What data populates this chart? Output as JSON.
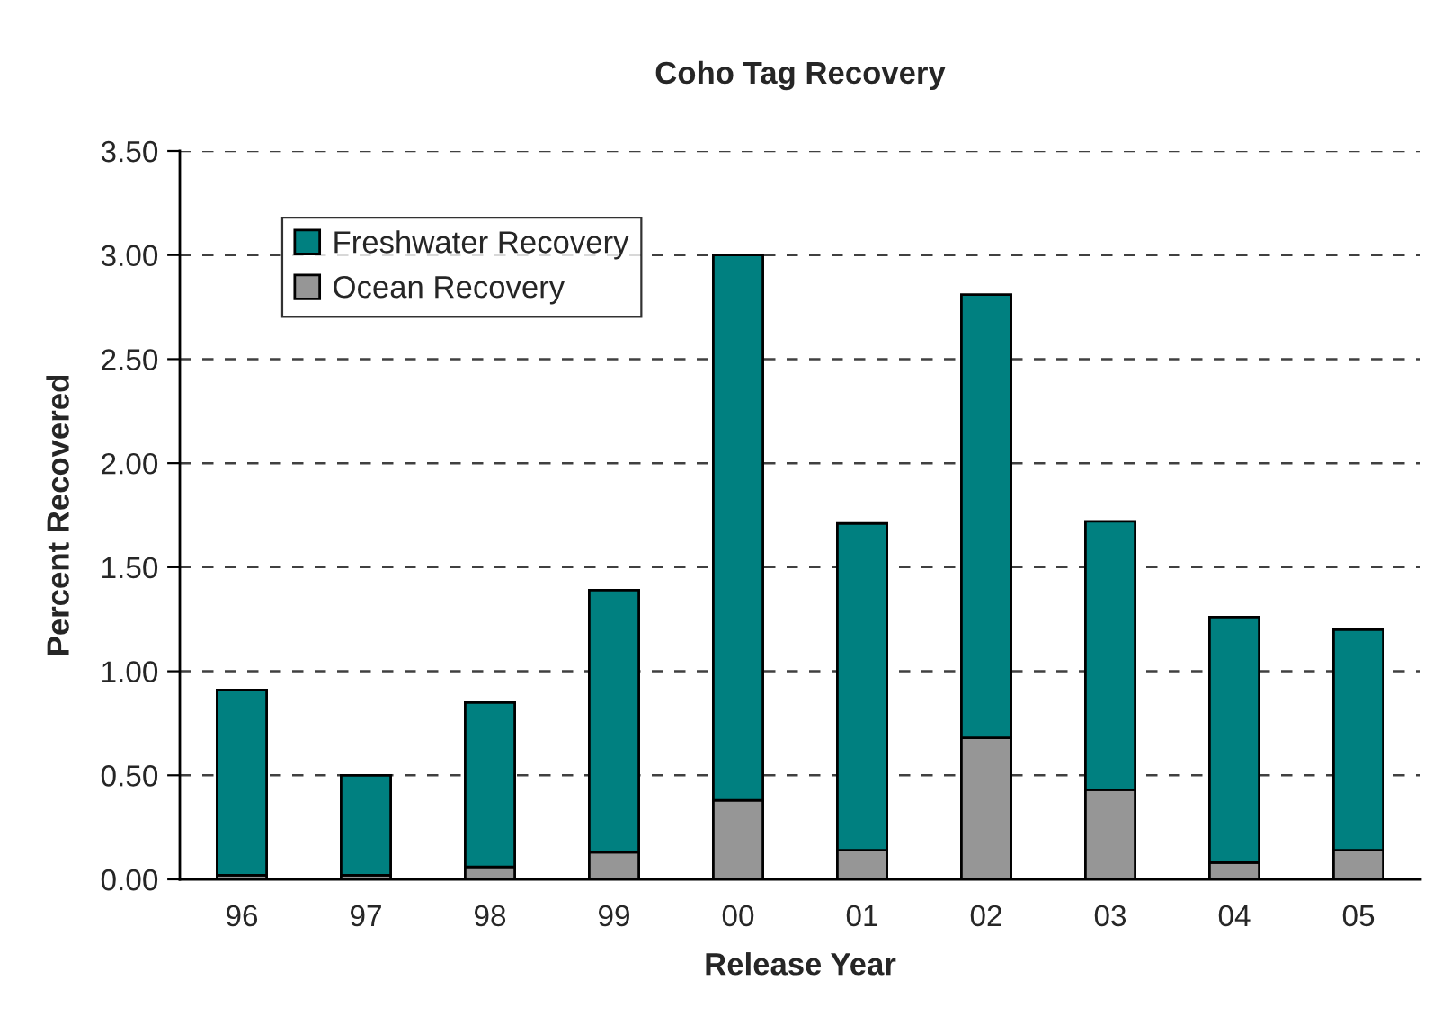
{
  "chart_data": {
    "type": "bar",
    "title": "Coho Tag Recovery",
    "xlabel": "Release Year",
    "ylabel": "Percent Recovered",
    "categories": [
      "96",
      "97",
      "98",
      "99",
      "00",
      "01",
      "02",
      "03",
      "04",
      "05"
    ],
    "stacked": true,
    "series": [
      {
        "name": "Ocean Recovery",
        "color": "#969696",
        "values": [
          0.02,
          0.02,
          0.06,
          0.13,
          0.38,
          0.14,
          0.68,
          0.43,
          0.08,
          0.14
        ]
      },
      {
        "name": "Freshwater Recovery",
        "color": "#008080",
        "values": [
          0.89,
          0.48,
          0.79,
          1.26,
          2.62,
          1.57,
          2.13,
          1.29,
          1.18,
          1.06
        ]
      }
    ],
    "ylim": [
      0,
      3.5
    ],
    "yticks": [
      {
        "value": 0,
        "label": "0.00"
      },
      {
        "value": 0.5,
        "label": "0.50"
      },
      {
        "value": 1,
        "label": "1.00"
      },
      {
        "value": 1.5,
        "label": "1.50"
      },
      {
        "value": 2,
        "label": "2.00"
      },
      {
        "value": 2.5,
        "label": "2.50"
      },
      {
        "value": 3,
        "label": "3.00"
      },
      {
        "value": 3.5,
        "label": "3.50"
      }
    ],
    "grid": "y",
    "legend": "top left"
  }
}
